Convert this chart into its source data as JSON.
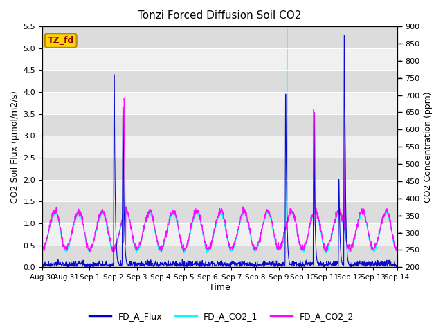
{
  "title": "Tonzi Forced Diffusion Soil CO2",
  "xlabel": "Time",
  "ylabel_left": "CO2 Soil Flux (μmol/m2/s)",
  "ylabel_right": "CO2 Concentration (ppm)",
  "ylim_left": [
    0.0,
    5.5
  ],
  "ylim_right": [
    200,
    900
  ],
  "yticks_left": [
    0.0,
    0.5,
    1.0,
    1.5,
    2.0,
    2.5,
    3.0,
    3.5,
    4.0,
    4.5,
    5.0,
    5.5
  ],
  "yticks_right": [
    200,
    250,
    300,
    350,
    400,
    450,
    500,
    550,
    600,
    650,
    700,
    750,
    800,
    850,
    900
  ],
  "color_flux": "#0000CD",
  "color_co2_1": "#00FFFF",
  "color_co2_2": "#FF00FF",
  "legend_label_flux": "FD_A_Flux",
  "legend_label_co2_1": "FD_A_CO2_1",
  "legend_label_co2_2": "FD_A_CO2_2",
  "text_box_label": "TZ_fd",
  "text_box_facecolor": "#FFD700",
  "text_box_edgecolor": "#B8860B",
  "text_box_textcolor": "#8B0000",
  "bg_color_light": "#F0F0F0",
  "bg_color_dark": "#DCDCDC",
  "tick_labels": [
    "Aug 30",
    "Aug 31",
    "Sep 1",
    "Sep 2",
    "Sep 3",
    "Sep 4",
    "Sep 5",
    "Sep 6",
    "Sep 7",
    "Sep 8",
    "Sep 9",
    "Sep 10",
    "Sep 11",
    "Sep 12",
    "Sep 13",
    "Sep 14"
  ],
  "n_days": 15,
  "samples_per_day": 96,
  "co2_base": 248,
  "co2_peak_amp": 110,
  "co2_min": 200,
  "co2_max": 900
}
